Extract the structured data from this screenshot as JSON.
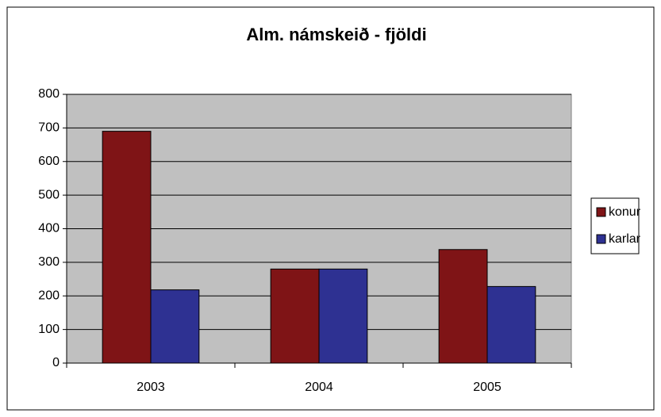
{
  "chart_data": {
    "type": "bar",
    "title": "Alm. námskeið - fjöldi",
    "categories": [
      "2003",
      "2004",
      "2005"
    ],
    "series": [
      {
        "name": "konur",
        "color": "#7f1416",
        "values": [
          690,
          280,
          338
        ]
      },
      {
        "name": "karlar",
        "color": "#2e3192",
        "values": [
          218,
          280,
          228
        ]
      }
    ],
    "ylim": [
      0,
      800
    ],
    "yticks": [
      0,
      100,
      200,
      300,
      400,
      500,
      600,
      700,
      800
    ],
    "grid": true,
    "legend": "right",
    "plot_background": "#c0c0c0"
  }
}
